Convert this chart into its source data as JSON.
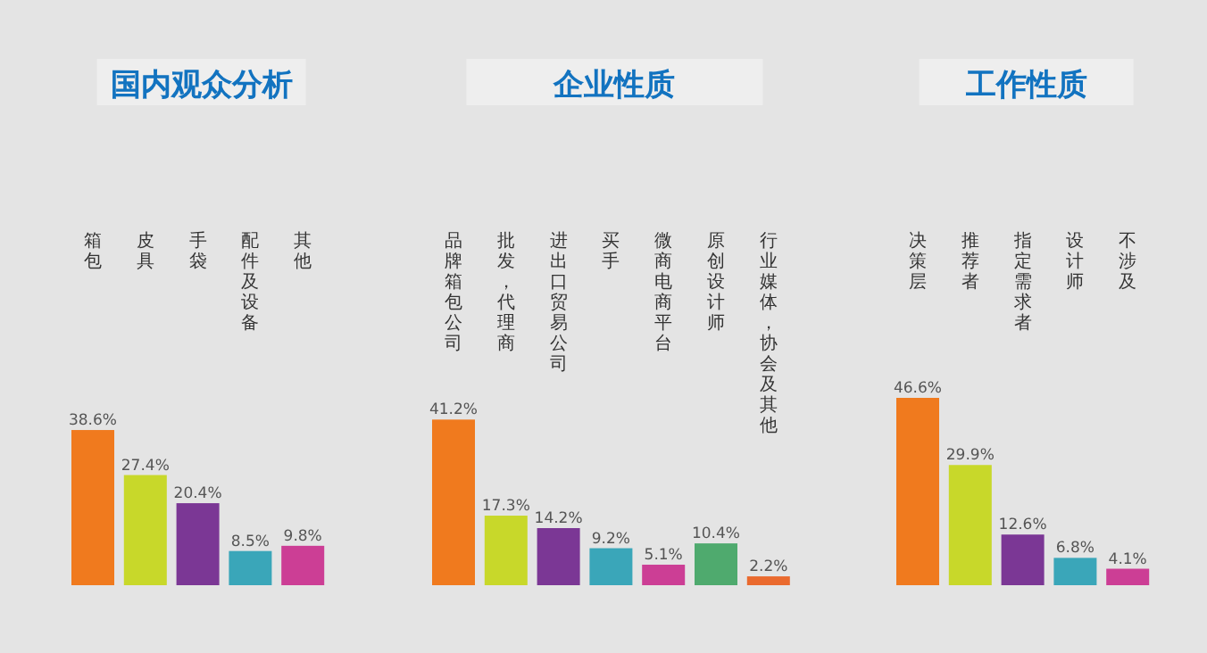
{
  "chart_data": [
    {
      "type": "bar",
      "title": "国内观众分析",
      "categories": [
        "箱包",
        "皮具",
        "手袋",
        "配件及设备",
        "其他"
      ],
      "values": [
        38.6,
        27.4,
        20.4,
        8.5,
        9.8
      ],
      "value_labels": [
        "38.6%",
        "27.4%",
        "20.4%",
        "8.5%",
        "9.8%"
      ],
      "colors": [
        "#f07a1e",
        "#c8d82a",
        "#7b3795",
        "#3aa6b9",
        "#cc3e95"
      ]
    },
    {
      "type": "bar",
      "title": "企业性质",
      "categories": [
        "品牌箱包公司",
        "批发，代理商",
        "进出口贸易公司",
        "买手",
        "微商电商平台",
        "原创设计师",
        "行业媒体，协会及其他"
      ],
      "values": [
        41.2,
        17.3,
        14.2,
        9.2,
        5.1,
        10.4,
        2.2
      ],
      "value_labels": [
        "41.2%",
        "17.3%",
        "14.2%",
        "9.2%",
        "5.1%",
        "10.4%",
        "2.2%"
      ],
      "colors": [
        "#f07a1e",
        "#c8d82a",
        "#7b3795",
        "#3aa6b9",
        "#cc3e95",
        "#4faa6e",
        "#ea6a2e"
      ]
    },
    {
      "type": "bar",
      "title": "工作性质",
      "categories": [
        "决策层",
        "推荐者",
        "指定需求者",
        "设计师",
        "不涉及"
      ],
      "values": [
        46.6,
        29.9,
        12.6,
        6.8,
        4.1
      ],
      "value_labels": [
        "46.6%",
        "29.9%",
        "12.6%",
        "6.8%",
        "4.1%"
      ],
      "colors": [
        "#f07a1e",
        "#c8d82a",
        "#7b3795",
        "#3aa6b9",
        "#cc3e95"
      ]
    }
  ]
}
